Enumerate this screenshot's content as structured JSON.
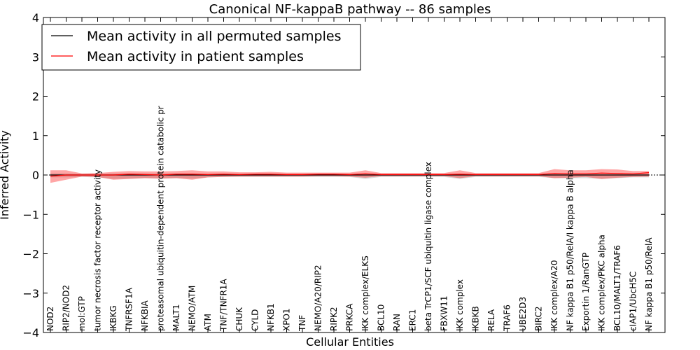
{
  "chart_data": {
    "type": "line",
    "title": "Canonical NF-kappaB pathway -- 86 samples",
    "xlabel": "Cellular Entities",
    "ylabel": "Inferred Activity",
    "ylim": [
      -4,
      4
    ],
    "yticks": [
      -4,
      -3,
      -2,
      -1,
      0,
      1,
      2,
      3,
      4
    ],
    "ytick_labels": [
      "−4",
      "−3",
      "−2",
      "−1",
      "0",
      "1",
      "2",
      "3",
      "4"
    ],
    "legend_position": "upper-left",
    "categories": [
      "NOD2",
      "RIP2/NOD2",
      "mol:GTP",
      "tumor necrosis factor receptor activity",
      "IKBKG",
      "TNFRSF1A",
      "NFKBIA",
      "proteasomal ubiquitin-dependent protein catabolic pr",
      "MALT1",
      "NEMO/ATM",
      "ATM",
      "TNF/TNFR1A",
      "CHUK",
      "CYLD",
      "NFKB1",
      "XPO1",
      "TNF",
      "NEMO/A20/RIP2",
      "RIPK2",
      "PRKCA",
      "IKK complex/ELKS",
      "BCL10",
      "RAN",
      "ERC1",
      "beta TrCP1/SCF ubiquitin ligase complex",
      "FBXW11",
      "IKK complex",
      "IKBKB",
      "RELA",
      "TRAF6",
      "UBE2D3",
      "BIRC2",
      "IKK complex/A20",
      "NF kappa B1 p50/RelA/I kappa B alpha",
      "Exportin 1/RanGTP",
      "IKK complex/PKC alpha",
      "BCL10/MALT1/TRAF6",
      "cIAP1/UbcH5C",
      "NF kappa B1 p50/RelA"
    ],
    "series": [
      {
        "name": "Mean activity in all permuted samples",
        "color": "#000000",
        "values": [
          0.0,
          0.0,
          0.0,
          0.0,
          0.0,
          0.0,
          0.0,
          0.0,
          0.0,
          0.0,
          0.0,
          0.0,
          0.0,
          0.0,
          0.0,
          0.0,
          0.0,
          0.0,
          0.0,
          0.0,
          0.0,
          0.0,
          0.0,
          0.0,
          0.0,
          0.0,
          0.0,
          0.0,
          0.0,
          0.0,
          0.0,
          0.0,
          0.0,
          0.0,
          0.0,
          0.0,
          0.0,
          0.0,
          0.0
        ],
        "band_lower": [
          -0.06,
          -0.06,
          -0.05,
          -0.06,
          -0.1,
          -0.09,
          -0.08,
          -0.09,
          -0.08,
          -0.09,
          -0.06,
          -0.05,
          -0.05,
          -0.05,
          -0.05,
          -0.05,
          -0.05,
          -0.05,
          -0.05,
          -0.05,
          -0.1,
          -0.05,
          -0.05,
          -0.05,
          -0.05,
          -0.05,
          -0.1,
          -0.05,
          -0.05,
          -0.05,
          -0.05,
          -0.05,
          -0.08,
          -0.08,
          -0.08,
          -0.1,
          -0.08,
          -0.06,
          -0.06
        ],
        "band_upper": [
          0.04,
          0.04,
          0.03,
          0.03,
          0.04,
          0.04,
          0.04,
          0.04,
          0.04,
          0.04,
          0.03,
          0.03,
          0.03,
          0.03,
          0.03,
          0.03,
          0.03,
          0.03,
          0.03,
          0.03,
          0.03,
          0.03,
          0.03,
          0.03,
          0.03,
          0.03,
          0.03,
          0.03,
          0.03,
          0.03,
          0.03,
          0.03,
          0.03,
          0.03,
          0.03,
          0.03,
          0.03,
          0.03,
          0.03
        ]
      },
      {
        "name": "Mean activity in patient samples",
        "color": "#ff0000",
        "values": [
          -0.03,
          0.0,
          0.0,
          0.0,
          0.0,
          0.02,
          0.01,
          0.0,
          0.02,
          0.02,
          0.01,
          0.02,
          0.01,
          0.02,
          0.02,
          0.01,
          0.01,
          0.02,
          0.02,
          0.01,
          0.03,
          0.01,
          0.01,
          0.01,
          0.01,
          0.01,
          0.02,
          0.01,
          0.01,
          0.01,
          0.01,
          0.01,
          0.04,
          0.03,
          0.03,
          0.05,
          0.04,
          0.03,
          0.06
        ],
        "band_lower": [
          -0.2,
          -0.12,
          -0.04,
          -0.05,
          -0.12,
          -0.1,
          -0.08,
          -0.09,
          -0.08,
          -0.12,
          -0.06,
          -0.05,
          -0.04,
          -0.04,
          -0.04,
          -0.04,
          -0.04,
          -0.03,
          -0.03,
          -0.04,
          -0.07,
          -0.03,
          -0.03,
          -0.03,
          -0.03,
          -0.03,
          -0.08,
          -0.03,
          -0.03,
          -0.03,
          -0.03,
          -0.03,
          -0.08,
          -0.07,
          -0.05,
          -0.1,
          -0.07,
          -0.05,
          -0.04
        ],
        "band_upper": [
          0.12,
          0.12,
          0.04,
          0.05,
          0.08,
          0.1,
          0.09,
          0.09,
          0.1,
          0.12,
          0.09,
          0.09,
          0.07,
          0.07,
          0.08,
          0.06,
          0.06,
          0.06,
          0.06,
          0.06,
          0.12,
          0.05,
          0.05,
          0.05,
          0.05,
          0.05,
          0.12,
          0.05,
          0.05,
          0.05,
          0.05,
          0.05,
          0.15,
          0.12,
          0.12,
          0.15,
          0.14,
          0.1,
          0.1
        ]
      }
    ]
  }
}
